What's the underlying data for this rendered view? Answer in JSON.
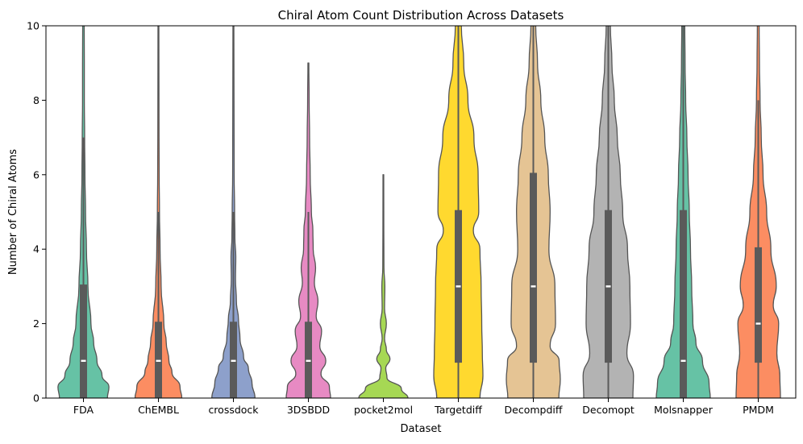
{
  "chart_data": {
    "type": "violin",
    "title": "Chiral Atom Count Distribution Across Datasets",
    "xlabel": "Dataset",
    "ylabel": "Number of Chiral Atoms",
    "ylim": [
      0,
      10
    ],
    "yticks": [
      0,
      2,
      4,
      6,
      8,
      10
    ],
    "grid": false,
    "legend": "none",
    "categories": [
      "FDA",
      "ChEMBL",
      "crossdock",
      "3DSBDD",
      "pocket2mol",
      "Targetdiff",
      "Decompdiff",
      "Decomopt",
      "Molsnapper",
      "PMDM"
    ],
    "series": [
      {
        "category": "FDA",
        "color": "#66c2a5",
        "q1": 0,
        "median": 1,
        "q3": 3.05,
        "whisker_low": 0,
        "whisker_high": 7,
        "density": [
          [
            0,
            0.8
          ],
          [
            0.3,
            0.85
          ],
          [
            0.6,
            0.62
          ],
          [
            1,
            0.45
          ],
          [
            1.5,
            0.34
          ],
          [
            2,
            0.25
          ],
          [
            3,
            0.15
          ],
          [
            4,
            0.1
          ],
          [
            5,
            0.07
          ],
          [
            6,
            0.05
          ],
          [
            7,
            0.04
          ],
          [
            8,
            0.03
          ],
          [
            9,
            0.03
          ],
          [
            10,
            0.025
          ]
        ]
      },
      {
        "category": "ChEMBL",
        "color": "#fc8d62",
        "q1": 0,
        "median": 1,
        "q3": 2.05,
        "whisker_low": 0,
        "whisker_high": 5,
        "density": [
          [
            0,
            0.78
          ],
          [
            0.3,
            0.72
          ],
          [
            0.7,
            0.45
          ],
          [
            1,
            0.35
          ],
          [
            1.5,
            0.26
          ],
          [
            2,
            0.18
          ],
          [
            3,
            0.09
          ],
          [
            4,
            0.055
          ],
          [
            5,
            0.035
          ],
          [
            6,
            0.025
          ],
          [
            7,
            0.02
          ],
          [
            8,
            0.018
          ],
          [
            9,
            0.016
          ],
          [
            10,
            0.014
          ]
        ]
      },
      {
        "category": "crossdock",
        "color": "#8da0cb",
        "q1": 0,
        "median": 1,
        "q3": 2.05,
        "whisker_low": 0,
        "whisker_high": 5,
        "density": [
          [
            0,
            0.72
          ],
          [
            0.4,
            0.62
          ],
          [
            0.8,
            0.5
          ],
          [
            1.1,
            0.34
          ],
          [
            1.6,
            0.22
          ],
          [
            2.1,
            0.17
          ],
          [
            2.6,
            0.1
          ],
          [
            3.2,
            0.07
          ],
          [
            3.8,
            0.08
          ],
          [
            4.3,
            0.05
          ],
          [
            5,
            0.04
          ],
          [
            6,
            0.025
          ],
          [
            8,
            0.02
          ],
          [
            10,
            0.015
          ]
        ]
      },
      {
        "category": "3DSBDD",
        "color": "#e78ac3",
        "q1": 0,
        "median": 1,
        "q3": 2.05,
        "whisker_low": 0,
        "whisker_high": 5,
        "density": [
          [
            0,
            0.74
          ],
          [
            0.3,
            0.7
          ],
          [
            0.65,
            0.42
          ],
          [
            1,
            0.58
          ],
          [
            1.4,
            0.38
          ],
          [
            1.8,
            0.44
          ],
          [
            2.2,
            0.26
          ],
          [
            2.6,
            0.32
          ],
          [
            3.1,
            0.2
          ],
          [
            3.5,
            0.24
          ],
          [
            4,
            0.16
          ],
          [
            4.5,
            0.15
          ],
          [
            5,
            0.1
          ],
          [
            6,
            0.06
          ],
          [
            7,
            0.04
          ],
          [
            8,
            0.025
          ],
          [
            9,
            0.015
          ]
        ]
      },
      {
        "category": "pocket2mol",
        "color": "#a6d854",
        "q1": 0,
        "median": 0,
        "q3": 0,
        "whisker_low": 0,
        "whisker_high": 0,
        "density": [
          [
            0,
            0.82
          ],
          [
            0.25,
            0.6
          ],
          [
            0.55,
            0.12
          ],
          [
            0.8,
            0.08
          ],
          [
            1.05,
            0.22
          ],
          [
            1.3,
            0.1
          ],
          [
            1.6,
            0.04
          ],
          [
            2,
            0.1
          ],
          [
            2.4,
            0.04
          ],
          [
            3,
            0.05
          ],
          [
            3.5,
            0.02
          ],
          [
            4.5,
            0.015
          ],
          [
            6,
            0.012
          ]
        ]
      },
      {
        "category": "Targetdiff",
        "color": "#ffd92f",
        "q1": 0.95,
        "median": 3,
        "q3": 5.05,
        "whisker_low": 0,
        "whisker_high": 10,
        "density": [
          [
            0,
            0.72
          ],
          [
            0.6,
            0.82
          ],
          [
            1.2,
            0.8
          ],
          [
            2,
            0.78
          ],
          [
            3,
            0.76
          ],
          [
            4,
            0.72
          ],
          [
            4.5,
            0.5
          ],
          [
            5,
            0.68
          ],
          [
            6,
            0.66
          ],
          [
            7,
            0.52
          ],
          [
            8,
            0.32
          ],
          [
            9,
            0.18
          ],
          [
            10,
            0.1
          ]
        ]
      },
      {
        "category": "Decompdiff",
        "color": "#e5c494",
        "q1": 0.95,
        "median": 3,
        "q3": 6.05,
        "whisker_low": 0,
        "whisker_high": 10,
        "density": [
          [
            0,
            0.85
          ],
          [
            0.5,
            0.9
          ],
          [
            1,
            0.86
          ],
          [
            1.4,
            0.56
          ],
          [
            2,
            0.74
          ],
          [
            3,
            0.72
          ],
          [
            4,
            0.52
          ],
          [
            5,
            0.56
          ],
          [
            6,
            0.5
          ],
          [
            7,
            0.38
          ],
          [
            8,
            0.25
          ],
          [
            9,
            0.14
          ],
          [
            10,
            0.08
          ]
        ]
      },
      {
        "category": "Decomopt",
        "color": "#b3b3b3",
        "q1": 0.95,
        "median": 3,
        "q3": 5.05,
        "whisker_low": 0,
        "whisker_high": 10,
        "density": [
          [
            0,
            0.82
          ],
          [
            0.6,
            0.84
          ],
          [
            1.2,
            0.62
          ],
          [
            2,
            0.74
          ],
          [
            3,
            0.72
          ],
          [
            4,
            0.64
          ],
          [
            5,
            0.48
          ],
          [
            6,
            0.4
          ],
          [
            7,
            0.3
          ],
          [
            8,
            0.2
          ],
          [
            9,
            0.12
          ],
          [
            10,
            0.07
          ]
        ]
      },
      {
        "category": "Molsnapper",
        "color": "#66c2a5",
        "q1": 0,
        "median": 1,
        "q3": 5.05,
        "whisker_low": 0,
        "whisker_high": 10,
        "density": [
          [
            0,
            0.9
          ],
          [
            0.4,
            0.86
          ],
          [
            1,
            0.64
          ],
          [
            1.5,
            0.42
          ],
          [
            2,
            0.32
          ],
          [
            3,
            0.28
          ],
          [
            4,
            0.24
          ],
          [
            5,
            0.2
          ],
          [
            6,
            0.16
          ],
          [
            7,
            0.12
          ],
          [
            8,
            0.08
          ],
          [
            9,
            0.06
          ],
          [
            10,
            0.05
          ]
        ]
      },
      {
        "category": "PMDM",
        "color": "#fc8d62",
        "q1": 0.95,
        "median": 2,
        "q3": 4.05,
        "whisker_low": 0,
        "whisker_high": 8,
        "density": [
          [
            0,
            0.74
          ],
          [
            0.6,
            0.72
          ],
          [
            1.2,
            0.62
          ],
          [
            2,
            0.68
          ],
          [
            2.5,
            0.5
          ],
          [
            3,
            0.6
          ],
          [
            4,
            0.42
          ],
          [
            5,
            0.28
          ],
          [
            6,
            0.16
          ],
          [
            7,
            0.1
          ],
          [
            8,
            0.06
          ],
          [
            9,
            0.04
          ],
          [
            10,
            0.03
          ]
        ]
      }
    ]
  }
}
